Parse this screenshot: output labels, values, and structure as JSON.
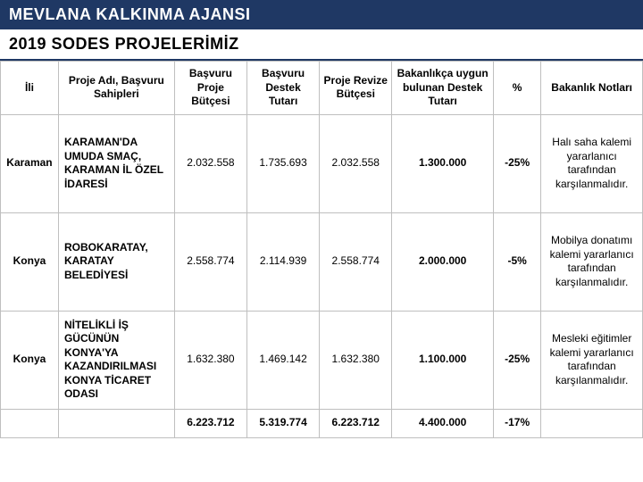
{
  "header1": "MEVLANA KALKINMA AJANSI",
  "header2": "2019 SODES PROJELERİMİZ",
  "columns": {
    "c0": "İli",
    "c1": "Proje Adı, Başvuru Sahipleri",
    "c2": "Başvuru Proje Bütçesi",
    "c3": "Başvuru Destek Tutarı",
    "c4": "Proje Revize Bütçesi",
    "c5": "Bakanlıkça uygun bulunan Destek Tutarı",
    "c6": "%",
    "c7": "Bakanlık Notları"
  },
  "rows": [
    {
      "ili": "Karaman",
      "proje": "KARAMAN'DA UMUDA SMAÇ, KARAMAN İL ÖZEL İDARESİ",
      "basvuru_butce": "2.032.558",
      "basvuru_destek": "1.735.693",
      "revize_butce": "2.032.558",
      "bakan_destek": "1.300.000",
      "pct": "-25%",
      "not": "Halı saha kalemi yararlanıcı tarafından karşılanmalıdır."
    },
    {
      "ili": "Konya",
      "proje": "ROBOKARATAY, KARATAY BELEDİYESİ",
      "basvuru_butce": "2.558.774",
      "basvuru_destek": "2.114.939",
      "revize_butce": "2.558.774",
      "bakan_destek": "2.000.000",
      "pct": "-5%",
      "not": "Mobilya donatımı kalemi yararlanıcı tarafından karşılanmalıdır."
    },
    {
      "ili": "Konya",
      "proje": "NİTELİKLİ İŞ GÜCÜNÜN KONYA'YA KAZANDIRILMASI KONYA TİCARET ODASI",
      "basvuru_butce": "1.632.380",
      "basvuru_destek": "1.469.142",
      "revize_butce": "1.632.380",
      "bakan_destek": "1.100.000",
      "pct": "-25%",
      "not": "Mesleki eğitimler kalemi yararlanıcı tarafından karşılanmalıdır."
    }
  ],
  "totals": {
    "basvuru_butce": "6.223.712",
    "basvuru_destek": "5.319.774",
    "revize_butce": "6.223.712",
    "bakan_destek": "4.400.000",
    "pct": "-17%"
  }
}
